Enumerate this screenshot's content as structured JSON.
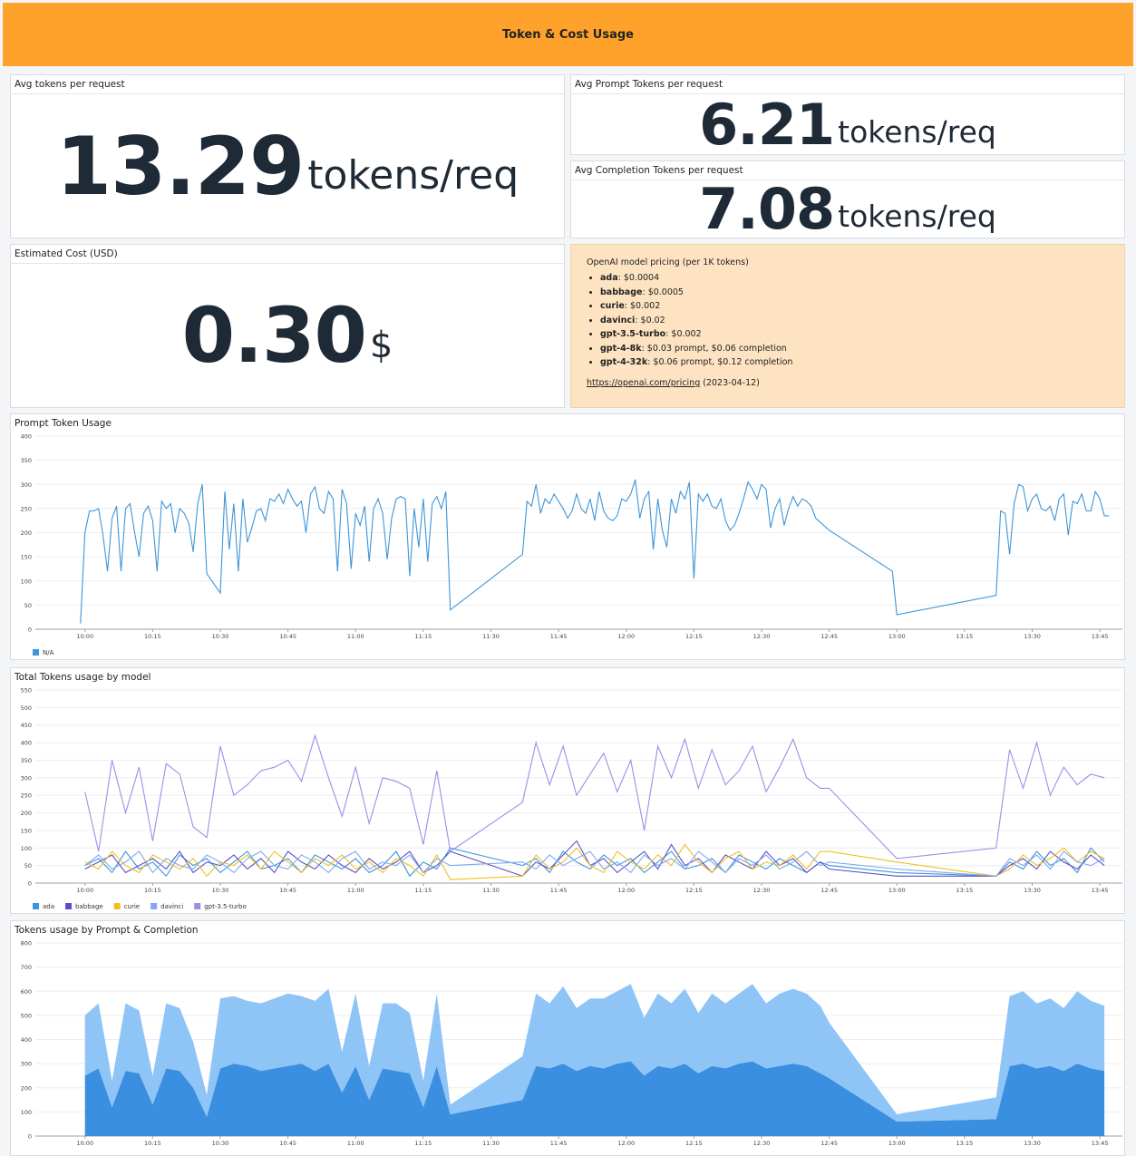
{
  "header": {
    "title": "Token & Cost Usage"
  },
  "stats": [
    {
      "title": "Avg tokens per request",
      "value": "13.29",
      "unit": "tokens/req"
    },
    {
      "title": "Avg Prompt Tokens per request",
      "value": "6.21",
      "unit": "tokens/req"
    },
    {
      "title": "Avg Completion Tokens per request",
      "value": "7.08",
      "unit": "tokens/req"
    },
    {
      "title": "Estimated Cost (USD)",
      "value": "0.30",
      "unit": "$"
    }
  ],
  "pricing": {
    "heading": "OpenAI model pricing (per 1K tokens)",
    "items": [
      {
        "model": "ada",
        "price": ": $0.0004"
      },
      {
        "model": "babbage",
        "price": ": $0.0005"
      },
      {
        "model": "curie",
        "price": ": $0.002"
      },
      {
        "model": "davinci",
        "price": ": $0.02"
      },
      {
        "model": "gpt-3.5-turbo",
        "price": ": $0.002"
      },
      {
        "model": "gpt-4-8k",
        "price": ": $0.03 prompt, $0.06 completion"
      },
      {
        "model": "gpt-4-32k",
        "price": ": $0.06 prompt, $0.12 completion"
      }
    ],
    "link": "https://openai.com/pricing",
    "date": " (2023-04-12)"
  },
  "chart_data": [
    {
      "type": "line",
      "title": "Prompt Token Usage",
      "x": [
        "09:59",
        "10:00",
        "10:01",
        "10:02",
        "10:03",
        "10:04",
        "10:05",
        "10:06",
        "10:07",
        "10:08",
        "10:09",
        "10:10",
        "10:11",
        "10:12",
        "10:13",
        "10:14",
        "10:15",
        "10:16",
        "10:17",
        "10:18",
        "10:19",
        "10:20",
        "10:21",
        "10:22",
        "10:23",
        "10:24",
        "10:25",
        "10:26",
        "10:27",
        "10:30",
        "10:31",
        "10:32",
        "10:33",
        "10:34",
        "10:35",
        "10:36",
        "10:37",
        "10:38",
        "10:39",
        "10:40",
        "10:41",
        "10:42",
        "10:43",
        "10:44",
        "10:45",
        "10:46",
        "10:47",
        "10:48",
        "10:49",
        "10:50",
        "10:51",
        "10:52",
        "10:53",
        "10:54",
        "10:55",
        "10:56",
        "10:57",
        "10:58",
        "10:59",
        "11:00",
        "11:01",
        "11:02",
        "11:03",
        "11:04",
        "11:05",
        "11:06",
        "11:07",
        "11:08",
        "11:09",
        "11:10",
        "11:11",
        "11:12",
        "11:13",
        "11:14",
        "11:15",
        "11:16",
        "11:17",
        "11:18",
        "11:19",
        "11:20",
        "11:21",
        "11:37",
        "11:38",
        "11:39",
        "11:40",
        "11:41",
        "11:42",
        "11:43",
        "11:44",
        "11:45",
        "11:46",
        "11:47",
        "11:48",
        "11:49",
        "11:50",
        "11:51",
        "11:52",
        "11:53",
        "11:54",
        "11:55",
        "11:56",
        "11:57",
        "11:58",
        "11:59",
        "12:00",
        "12:01",
        "12:02",
        "12:03",
        "12:04",
        "12:05",
        "12:06",
        "12:07",
        "12:08",
        "12:09",
        "12:10",
        "12:11",
        "12:12",
        "12:13",
        "12:14",
        "12:15",
        "12:16",
        "12:17",
        "12:18",
        "12:19",
        "12:20",
        "12:21",
        "12:22",
        "12:23",
        "12:24",
        "12:25",
        "12:26",
        "12:27",
        "12:28",
        "12:29",
        "12:30",
        "12:31",
        "12:32",
        "12:33",
        "12:34",
        "12:35",
        "12:36",
        "12:37",
        "12:38",
        "12:39",
        "12:40",
        "12:41",
        "12:42",
        "12:45",
        "12:59",
        "13:00",
        "13:22",
        "13:23",
        "13:24",
        "13:25",
        "13:26",
        "13:27",
        "13:28",
        "13:29",
        "13:30",
        "13:31",
        "13:32",
        "13:33",
        "13:34",
        "13:35",
        "13:36",
        "13:37",
        "13:38",
        "13:39",
        "13:40",
        "13:41",
        "13:42",
        "13:43",
        "13:44",
        "13:45",
        "13:46",
        "13:47"
      ],
      "series": [
        {
          "name": "N/A",
          "color": "#3d96d9",
          "values": [
            12,
            200,
            245,
            245,
            250,
            195,
            120,
            230,
            255,
            120,
            250,
            260,
            200,
            150,
            240,
            255,
            225,
            120,
            265,
            250,
            260,
            200,
            250,
            240,
            220,
            160,
            260,
            300,
            115,
            75,
            285,
            165,
            260,
            120,
            270,
            180,
            210,
            245,
            250,
            225,
            270,
            265,
            280,
            260,
            290,
            270,
            255,
            265,
            200,
            280,
            295,
            250,
            240,
            285,
            270,
            120,
            290,
            260,
            125,
            240,
            215,
            255,
            140,
            250,
            270,
            240,
            145,
            230,
            270,
            275,
            270,
            110,
            250,
            170,
            270,
            140,
            260,
            275,
            250,
            285,
            40,
            155,
            265,
            255,
            300,
            240,
            270,
            260,
            280,
            265,
            250,
            230,
            245,
            280,
            250,
            240,
            270,
            225,
            285,
            245,
            230,
            225,
            235,
            270,
            265,
            280,
            310,
            230,
            270,
            285,
            165,
            270,
            205,
            170,
            270,
            240,
            285,
            270,
            305,
            105,
            280,
            265,
            280,
            255,
            250,
            270,
            225,
            205,
            215,
            240,
            270,
            305,
            290,
            270,
            300,
            290,
            210,
            250,
            270,
            215,
            250,
            275,
            255,
            270,
            265,
            255,
            230,
            205,
            120,
            30,
            70,
            245,
            240,
            155,
            260,
            300,
            295,
            245,
            270,
            280,
            250,
            245,
            255,
            225,
            270,
            280,
            195,
            265,
            260,
            280,
            245,
            245,
            285,
            270,
            235,
            235
          ]
        }
      ],
      "xlim": [
        "09:49",
        "13:50"
      ],
      "xticks": [
        "10:00",
        "10:15",
        "10:30",
        "10:45",
        "11:00",
        "11:15",
        "11:30",
        "11:45",
        "12:00",
        "12:15",
        "12:30",
        "12:45",
        "13:00",
        "13:15",
        "13:30",
        "13:45"
      ],
      "ylim": [
        0,
        400
      ],
      "yticks": [
        0,
        50,
        100,
        150,
        200,
        250,
        300,
        350,
        400
      ],
      "grid": true
    },
    {
      "type": "line",
      "title": "Total Tokens usage by model",
      "x": [
        "10:00",
        "10:03",
        "10:06",
        "10:09",
        "10:12",
        "10:15",
        "10:18",
        "10:21",
        "10:24",
        "10:27",
        "10:30",
        "10:33",
        "10:36",
        "10:39",
        "10:42",
        "10:45",
        "10:48",
        "10:51",
        "10:54",
        "10:57",
        "11:00",
        "11:03",
        "11:06",
        "11:09",
        "11:12",
        "11:15",
        "11:18",
        "11:21",
        "11:37",
        "11:40",
        "11:43",
        "11:46",
        "11:49",
        "11:52",
        "11:55",
        "11:58",
        "12:01",
        "12:04",
        "12:07",
        "12:10",
        "12:13",
        "12:16",
        "12:19",
        "12:22",
        "12:25",
        "12:28",
        "12:31",
        "12:34",
        "12:37",
        "12:40",
        "12:43",
        "12:45",
        "13:00",
        "13:22",
        "13:25",
        "13:28",
        "13:31",
        "13:34",
        "13:37",
        "13:40",
        "13:43",
        "13:46"
      ],
      "series": [
        {
          "name": "ada",
          "color": "#3d96d9",
          "values": [
            50,
            70,
            30,
            90,
            40,
            60,
            20,
            80,
            50,
            70,
            30,
            60,
            90,
            40,
            50,
            70,
            30,
            80,
            60,
            40,
            70,
            30,
            50,
            90,
            20,
            60,
            40,
            100,
            50,
            70,
            30,
            90,
            60,
            40,
            80,
            50,
            70,
            30,
            60,
            90,
            40,
            50,
            70,
            30,
            80,
            60,
            40,
            70,
            50,
            30,
            60,
            50,
            30,
            20,
            60,
            40,
            90,
            50,
            70,
            30,
            100,
            60
          ]
        },
        {
          "name": "babbage",
          "color": "#5b4fc7",
          "values": [
            40,
            60,
            80,
            30,
            50,
            70,
            40,
            90,
            30,
            60,
            50,
            80,
            40,
            70,
            30,
            90,
            60,
            40,
            80,
            50,
            30,
            70,
            40,
            60,
            90,
            30,
            50,
            90,
            20,
            60,
            40,
            80,
            120,
            50,
            70,
            30,
            60,
            90,
            40,
            110,
            50,
            70,
            30,
            80,
            60,
            40,
            90,
            50,
            70,
            30,
            60,
            40,
            20,
            20,
            50,
            70,
            40,
            90,
            60,
            40,
            80,
            50
          ]
        },
        {
          "name": "curie",
          "color": "#f0c020",
          "values": [
            60,
            40,
            90,
            50,
            30,
            80,
            60,
            40,
            70,
            20,
            60,
            50,
            80,
            40,
            90,
            60,
            30,
            70,
            50,
            80,
            40,
            60,
            30,
            70,
            50,
            20,
            80,
            10,
            20,
            80,
            40,
            60,
            100,
            50,
            30,
            90,
            60,
            40,
            80,
            50,
            110,
            60,
            30,
            70,
            90,
            40,
            60,
            50,
            80,
            40,
            90,
            90,
            60,
            20,
            40,
            80,
            50,
            70,
            100,
            60,
            90,
            70
          ]
        },
        {
          "name": "davinci",
          "color": "#7fa8f0",
          "values": [
            50,
            80,
            40,
            60,
            90,
            30,
            70,
            50,
            40,
            80,
            60,
            30,
            70,
            90,
            50,
            40,
            80,
            60,
            30,
            70,
            90,
            40,
            60,
            50,
            80,
            30,
            70,
            50,
            60,
            40,
            80,
            50,
            70,
            90,
            40,
            60,
            30,
            80,
            50,
            70,
            40,
            90,
            60,
            30,
            70,
            50,
            80,
            40,
            60,
            90,
            50,
            60,
            40,
            20,
            70,
            50,
            80,
            40,
            90,
            60,
            50,
            70
          ]
        },
        {
          "name": "gpt-3.5-turbo",
          "color": "#a48be6",
          "values": [
            260,
            90,
            350,
            200,
            330,
            120,
            340,
            310,
            160,
            130,
            390,
            250,
            280,
            320,
            330,
            350,
            290,
            420,
            300,
            190,
            330,
            170,
            300,
            290,
            270,
            110,
            320,
            90,
            230,
            400,
            280,
            390,
            250,
            310,
            370,
            260,
            350,
            150,
            390,
            300,
            410,
            270,
            380,
            280,
            320,
            390,
            260,
            330,
            410,
            300,
            270,
            270,
            70,
            100,
            380,
            270,
            400,
            250,
            330,
            280,
            310,
            300
          ]
        }
      ],
      "xlim": [
        "09:49",
        "13:50"
      ],
      "xticks": [
        "10:00",
        "10:15",
        "10:30",
        "10:45",
        "11:00",
        "11:15",
        "11:30",
        "11:45",
        "12:00",
        "12:15",
        "12:30",
        "12:45",
        "13:00",
        "13:15",
        "13:30",
        "13:45"
      ],
      "ylim": [
        0,
        550
      ],
      "yticks": [
        0,
        50,
        100,
        150,
        200,
        250,
        300,
        350,
        400,
        450,
        500,
        550
      ],
      "grid": true
    },
    {
      "type": "area",
      "title": "Tokens usage by Prompt & Completion",
      "x": [
        "10:00",
        "10:03",
        "10:06",
        "10:09",
        "10:12",
        "10:15",
        "10:18",
        "10:21",
        "10:24",
        "10:27",
        "10:30",
        "10:33",
        "10:36",
        "10:39",
        "10:42",
        "10:45",
        "10:48",
        "10:51",
        "10:54",
        "10:57",
        "11:00",
        "11:03",
        "11:06",
        "11:09",
        "11:12",
        "11:15",
        "11:18",
        "11:21",
        "11:37",
        "11:40",
        "11:43",
        "11:46",
        "11:49",
        "11:52",
        "11:55",
        "11:58",
        "12:01",
        "12:04",
        "12:07",
        "12:10",
        "12:13",
        "12:16",
        "12:19",
        "12:22",
        "12:25",
        "12:28",
        "12:31",
        "12:34",
        "12:37",
        "12:40",
        "12:43",
        "12:45",
        "13:00",
        "13:22",
        "13:25",
        "13:28",
        "13:31",
        "13:34",
        "13:37",
        "13:40",
        "13:43",
        "13:46"
      ],
      "series": [
        {
          "color": "#3b8fe0",
          "values": [
            250,
            280,
            120,
            270,
            260,
            130,
            280,
            270,
            200,
            80,
            280,
            300,
            290,
            270,
            280,
            290,
            300,
            270,
            300,
            180,
            290,
            150,
            280,
            270,
            260,
            120,
            290,
            90,
            150,
            290,
            280,
            300,
            270,
            290,
            280,
            300,
            310,
            250,
            290,
            280,
            300,
            260,
            290,
            280,
            300,
            310,
            280,
            290,
            300,
            290,
            260,
            240,
            60,
            70,
            290,
            300,
            280,
            290,
            270,
            300,
            280,
            270
          ]
        },
        {
          "color": "#8fc4f7",
          "values": [
            250,
            270,
            110,
            280,
            260,
            120,
            270,
            260,
            190,
            90,
            290,
            280,
            270,
            280,
            290,
            300,
            280,
            290,
            310,
            170,
            300,
            140,
            270,
            280,
            250,
            110,
            300,
            40,
            180,
            300,
            270,
            320,
            260,
            280,
            290,
            300,
            320,
            240,
            300,
            270,
            310,
            250,
            300,
            270,
            290,
            320,
            270,
            300,
            310,
            300,
            280,
            230,
            30,
            90,
            290,
            300,
            270,
            280,
            260,
            300,
            280,
            270
          ]
        }
      ],
      "stacked": true,
      "xlim": [
        "09:49",
        "13:50"
      ],
      "xticks": [
        "10:00",
        "10:15",
        "10:30",
        "10:45",
        "11:00",
        "11:15",
        "11:30",
        "11:45",
        "12:00",
        "12:15",
        "12:30",
        "12:45",
        "13:00",
        "13:15",
        "13:30",
        "13:45"
      ],
      "ylim": [
        0,
        800
      ],
      "yticks": [
        0,
        100,
        200,
        300,
        400,
        500,
        600,
        700,
        800
      ],
      "grid": true
    }
  ]
}
